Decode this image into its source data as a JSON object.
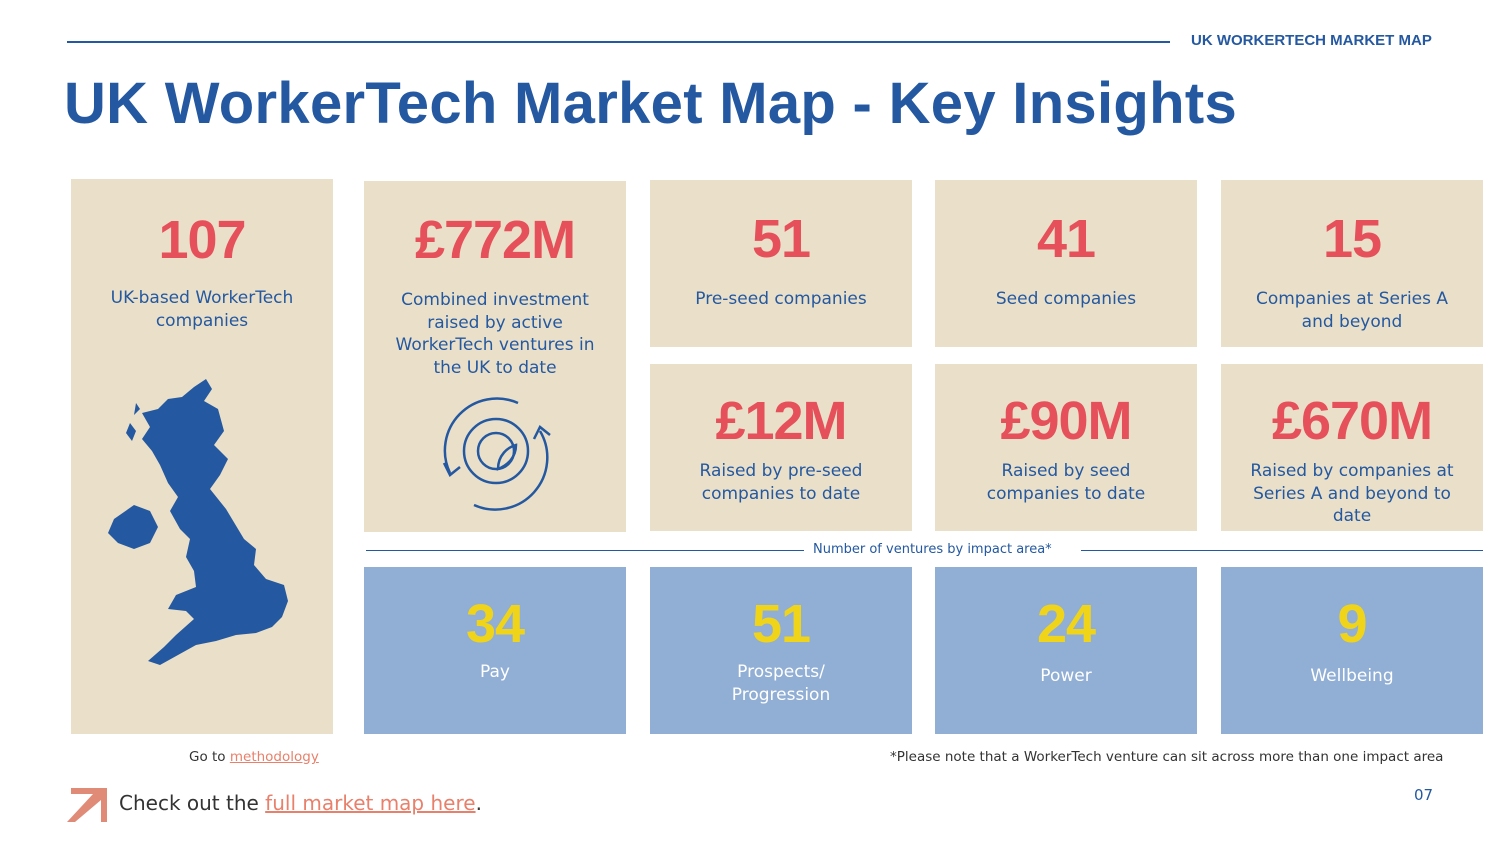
{
  "header": {
    "label": "UK WORKERTECH MARKET MAP",
    "title": "UK WorkerTech Market Map - Key Insights"
  },
  "stats": [
    {
      "value": "107",
      "desc": "UK-based WorkerTech companies"
    },
    {
      "value": "£772M",
      "desc": "Combined investment raised by active WorkerTech ventures in the UK to date"
    },
    {
      "value": "51",
      "desc": "Pre-seed companies"
    },
    {
      "value": "41",
      "desc": "Seed companies"
    },
    {
      "value": "15",
      "desc": "Companies at Series A and beyond"
    },
    {
      "value": "£12M",
      "desc": "Raised by pre-seed companies to date"
    },
    {
      "value": "£90M",
      "desc": "Raised by seed companies to date"
    },
    {
      "value": "£670M",
      "desc": "Raised by companies at Series A and beyond to date"
    }
  ],
  "impact": {
    "label": "Number of ventures by impact area*",
    "areas": [
      {
        "value": "34",
        "name": "Pay"
      },
      {
        "value": "51",
        "name": "Prospects/ Progression"
      },
      {
        "value": "24",
        "name": "Power"
      },
      {
        "value": "9",
        "name": "Wellbeing"
      }
    ]
  },
  "footer": {
    "goto": "Go to ",
    "methodology": "methodology",
    "note": "*Please note that a WorkerTech venture can sit across more than one impact area",
    "check": "Check out the ",
    "map_link": "full market map here",
    "period": ".",
    "page": "07"
  }
}
